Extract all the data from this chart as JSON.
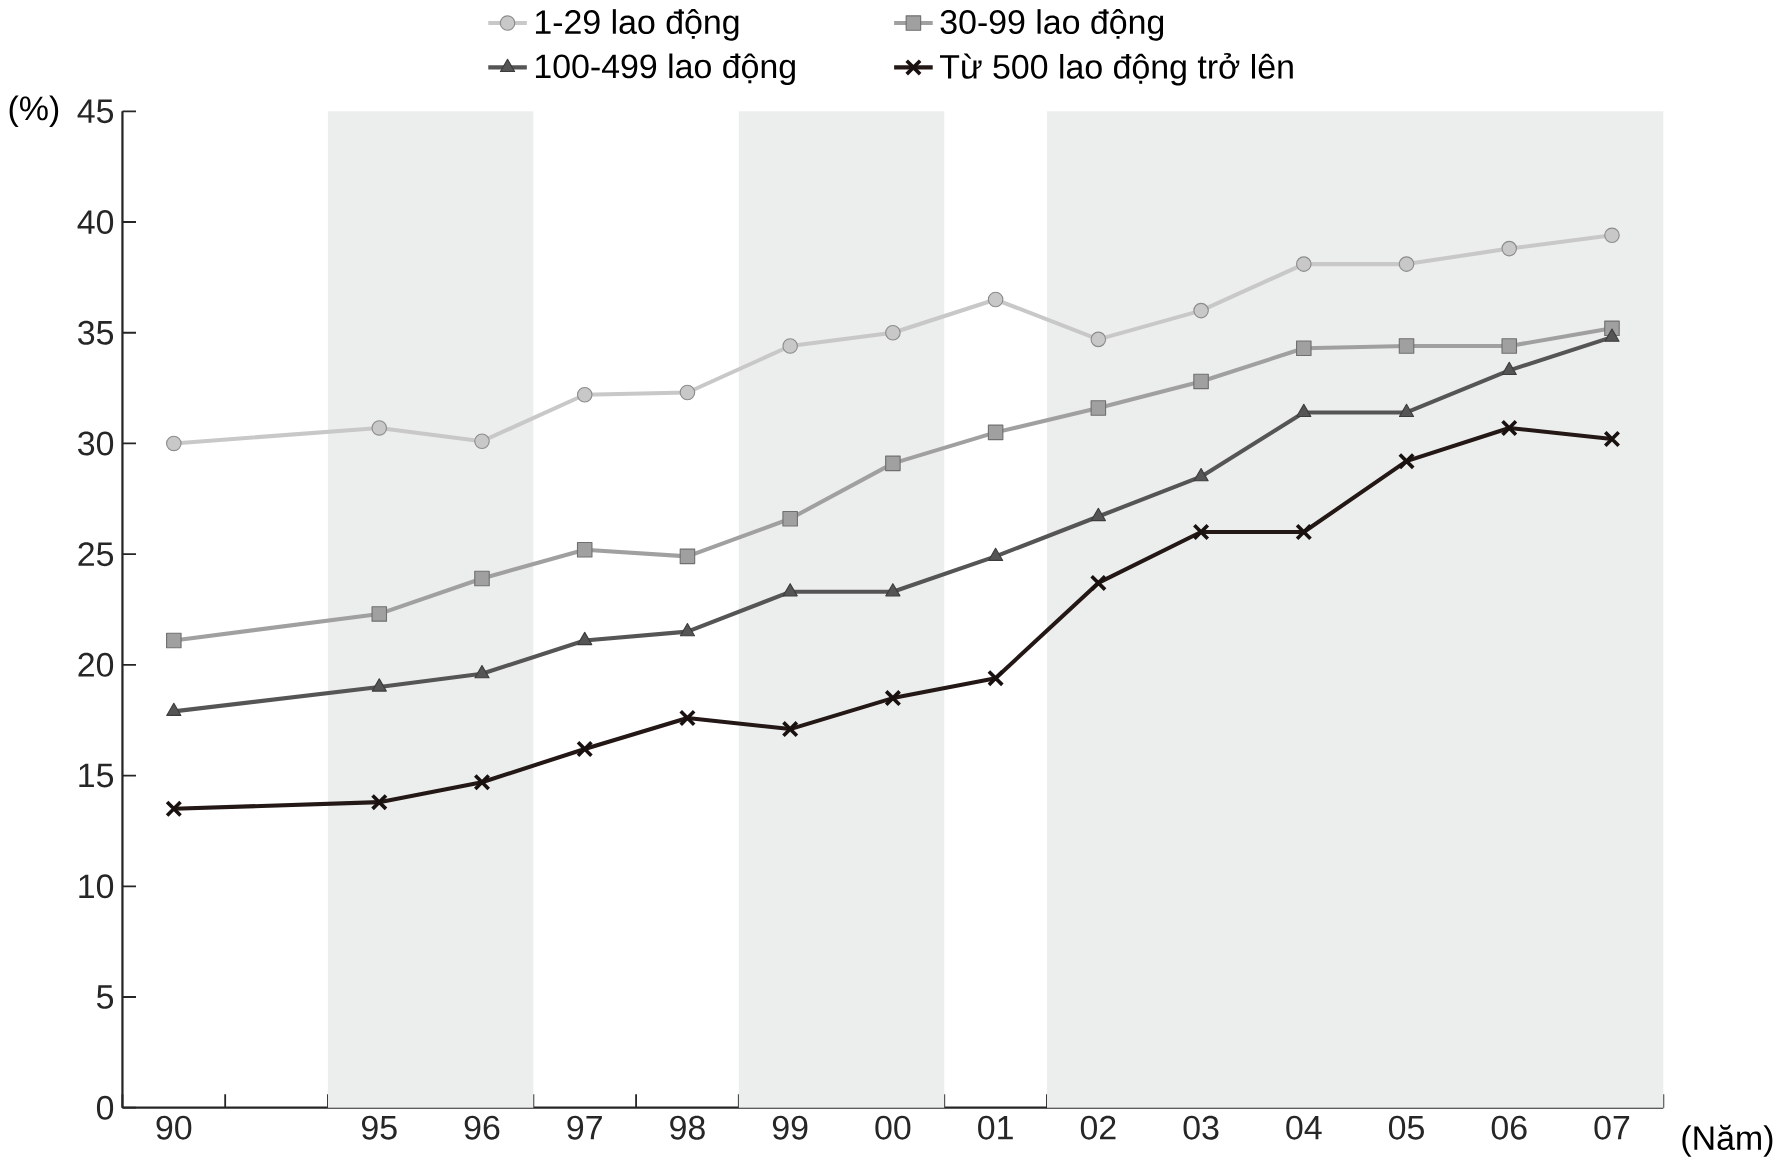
{
  "chart_data": {
    "type": "line",
    "ylabel": "(%)",
    "xlabel": "(Năm)",
    "categories": [
      "90",
      null,
      "95",
      "96",
      "97",
      "98",
      "99",
      "00",
      "01",
      "02",
      "03",
      "04",
      "05",
      "06",
      "07"
    ],
    "series": [
      {
        "name": "1-29  lao động",
        "color": "#c8c8c8",
        "marker": "circle",
        "values": [
          30.0,
          null,
          30.7,
          30.1,
          32.2,
          32.3,
          34.4,
          35.0,
          36.5,
          34.7,
          36.0,
          38.1,
          38.1,
          38.8,
          39.4
        ]
      },
      {
        "name": "30-99 lao động",
        "color": "#a0a0a0",
        "marker": "square",
        "values": [
          21.1,
          null,
          22.3,
          23.9,
          25.2,
          24.9,
          26.6,
          29.1,
          30.5,
          31.6,
          32.8,
          34.3,
          34.4,
          34.4,
          35.2
        ]
      },
      {
        "name": "100-499 lao động",
        "color": "#555555",
        "marker": "triangle",
        "values": [
          17.9,
          null,
          19.0,
          19.6,
          21.1,
          21.5,
          23.3,
          23.3,
          24.9,
          26.7,
          28.5,
          31.4,
          31.4,
          33.3,
          34.8
        ]
      },
      {
        "name": "Từ 500 lao động trở lên",
        "color": "#231815",
        "marker": "cross",
        "values": [
          13.5,
          null,
          13.8,
          14.7,
          16.2,
          17.6,
          17.1,
          18.5,
          19.4,
          23.7,
          26.0,
          26.0,
          29.2,
          30.7,
          30.2
        ]
      }
    ],
    "bands": [
      {
        "axis": "x",
        "from": "95",
        "to": "96",
        "color": "#eceeed"
      },
      {
        "axis": "x",
        "from": "99",
        "to": "00",
        "color": "#eceeed"
      },
      {
        "axis": "x",
        "from": "02",
        "to": "07",
        "color": "#eceeed"
      }
    ],
    "ylim": [
      0,
      45
    ],
    "yticks": [
      0,
      5,
      10,
      15,
      20,
      25,
      30,
      35,
      40,
      45
    ],
    "grid": false,
    "legend": "top",
    "line_style": "solid"
  }
}
